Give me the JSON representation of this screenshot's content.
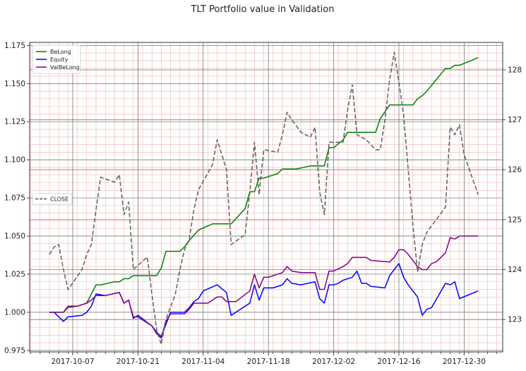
{
  "chart_data": {
    "type": "line",
    "title": "TLT Portfolio value in Validation",
    "xlabel": "",
    "ylabel": "",
    "x_start": "2017-10-02",
    "x_tick_labels": [
      "2017-10-07",
      "2017-10-21",
      "2017-11-04",
      "2017-11-18",
      "2017-12-02",
      "2017-12-16",
      "2017-12-30"
    ],
    "x_range": [
      "2017-09-28",
      "2018-01-05"
    ],
    "y_left_ticks": [
      "0.975",
      "1.000",
      "1.025",
      "1.050",
      "1.075",
      "1.100",
      "1.125",
      "1.150",
      "1.175"
    ],
    "y_right_ticks": [
      "123",
      "124",
      "125",
      "126",
      "127",
      "128"
    ],
    "ylim_left": [
      0.974,
      1.177
    ],
    "ylim_right": [
      122.35,
      128.55
    ],
    "grid": true,
    "legend_left": {
      "placement": "upper-left",
      "entries": [
        "BeLong",
        "Equity",
        "ValBeLong"
      ]
    },
    "legend_right": {
      "placement": "center-left",
      "entries": [
        "CLOSE"
      ]
    },
    "series": [
      {
        "name": "BeLong",
        "axis": "left",
        "color": "#008000",
        "dash": "solid",
        "points": [
          [
            0,
            1.0
          ],
          [
            2,
            1.0
          ],
          [
            3,
            1.0
          ],
          [
            4,
            1.003
          ],
          [
            6,
            1.004
          ],
          [
            8,
            1.006
          ],
          [
            10,
            1.018
          ],
          [
            11,
            1.018
          ],
          [
            14,
            1.02
          ],
          [
            15,
            1.02
          ],
          [
            16,
            1.022
          ],
          [
            17,
            1.022
          ],
          [
            18,
            1.024
          ],
          [
            19,
            1.024
          ],
          [
            22,
            1.024
          ],
          [
            23,
            1.024
          ],
          [
            24,
            1.029
          ],
          [
            25,
            1.04
          ],
          [
            28,
            1.04
          ],
          [
            29,
            1.043
          ],
          [
            30,
            1.047
          ],
          [
            32,
            1.054
          ],
          [
            35,
            1.058
          ],
          [
            39,
            1.058
          ],
          [
            42,
            1.068
          ],
          [
            43,
            1.079
          ],
          [
            44,
            1.079
          ],
          [
            45,
            1.088
          ],
          [
            46,
            1.088
          ],
          [
            49,
            1.091
          ],
          [
            50,
            1.094
          ],
          [
            53,
            1.094
          ],
          [
            56,
            1.096
          ],
          [
            57,
            1.096
          ],
          [
            59,
            1.096
          ],
          [
            60,
            1.108
          ],
          [
            61,
            1.108
          ],
          [
            63,
            1.113
          ],
          [
            64,
            1.118
          ],
          [
            66,
            1.118
          ],
          [
            70,
            1.118
          ],
          [
            71,
            1.127
          ],
          [
            73,
            1.136
          ],
          [
            74,
            1.136
          ],
          [
            77,
            1.136
          ],
          [
            78,
            1.136
          ],
          [
            79,
            1.14
          ],
          [
            80,
            1.142
          ],
          [
            81,
            1.145
          ],
          [
            85,
            1.16
          ],
          [
            86,
            1.16
          ],
          [
            87,
            1.162
          ],
          [
            88,
            1.162
          ],
          [
            92,
            1.167
          ]
        ]
      },
      {
        "name": "Equity",
        "axis": "left",
        "color": "#0000ff",
        "dash": "solid",
        "points": [
          [
            0,
            1.0
          ],
          [
            1,
            1.0
          ],
          [
            2,
            0.997
          ],
          [
            3,
            0.994
          ],
          [
            4,
            0.997
          ],
          [
            7,
            0.998
          ],
          [
            8,
            1.0
          ],
          [
            9,
            1.004
          ],
          [
            10,
            1.012
          ],
          [
            12,
            1.011
          ],
          [
            15,
            1.013
          ],
          [
            16,
            1.006
          ],
          [
            17,
            1.008
          ],
          [
            18,
            0.996
          ],
          [
            19,
            0.998
          ],
          [
            22,
            0.991
          ],
          [
            23,
            0.987
          ],
          [
            24,
            0.984
          ],
          [
            26,
            1.0
          ],
          [
            29,
            1.0
          ],
          [
            30,
            1.003
          ],
          [
            31,
            1.007
          ],
          [
            32,
            1.009
          ],
          [
            33,
            1.014
          ],
          [
            36,
            1.018
          ],
          [
            38,
            1.013
          ],
          [
            39,
            0.998
          ],
          [
            43,
            1.006
          ],
          [
            44,
            1.018
          ],
          [
            45,
            1.008
          ],
          [
            46,
            1.016
          ],
          [
            47,
            1.016
          ],
          [
            48,
            1.016
          ],
          [
            50,
            1.018
          ],
          [
            51,
            1.022
          ],
          [
            52,
            1.019
          ],
          [
            54,
            1.018
          ],
          [
            57,
            1.02
          ],
          [
            58,
            1.009
          ],
          [
            59,
            1.006
          ],
          [
            60,
            1.018
          ],
          [
            61,
            1.018
          ],
          [
            62,
            1.019
          ],
          [
            63,
            1.021
          ],
          [
            65,
            1.023
          ],
          [
            66,
            1.027
          ],
          [
            67,
            1.019
          ],
          [
            68,
            1.019
          ],
          [
            69,
            1.017
          ],
          [
            72,
            1.016
          ],
          [
            73,
            1.024
          ],
          [
            74,
            1.028
          ],
          [
            75,
            1.032
          ],
          [
            76,
            1.023
          ],
          [
            77,
            1.018
          ],
          [
            79,
            1.01
          ],
          [
            80,
            0.998
          ],
          [
            81,
            1.002
          ],
          [
            82,
            1.003
          ],
          [
            85,
            1.019
          ],
          [
            86,
            1.018
          ],
          [
            87,
            1.02
          ],
          [
            88,
            1.009
          ],
          [
            92,
            1.014
          ]
        ]
      },
      {
        "name": "ValBeLong",
        "axis": "left",
        "color": "#800080",
        "dash": "solid",
        "points": [
          [
            0,
            1.0
          ],
          [
            2,
            1.0
          ],
          [
            3,
            1.0
          ],
          [
            4,
            1.004
          ],
          [
            6,
            1.004
          ],
          [
            8,
            1.006
          ],
          [
            9,
            1.008
          ],
          [
            10,
            1.011
          ],
          [
            12,
            1.011
          ],
          [
            15,
            1.013
          ],
          [
            16,
            1.006
          ],
          [
            17,
            1.008
          ],
          [
            18,
            0.997
          ],
          [
            19,
            0.997
          ],
          [
            20,
            0.995
          ],
          [
            22,
            0.991
          ],
          [
            23,
            0.986
          ],
          [
            24,
            0.983
          ],
          [
            25,
            0.994
          ],
          [
            26,
            0.999
          ],
          [
            29,
            0.999
          ],
          [
            30,
            1.002
          ],
          [
            31,
            1.006
          ],
          [
            34,
            1.006
          ],
          [
            36,
            1.01
          ],
          [
            37,
            1.01
          ],
          [
            38,
            1.007
          ],
          [
            40,
            1.007
          ],
          [
            43,
            1.014
          ],
          [
            44,
            1.025
          ],
          [
            45,
            1.016
          ],
          [
            46,
            1.023
          ],
          [
            47,
            1.023
          ],
          [
            50,
            1.026
          ],
          [
            51,
            1.03
          ],
          [
            52,
            1.027
          ],
          [
            54,
            1.026
          ],
          [
            57,
            1.026
          ],
          [
            58,
            1.015
          ],
          [
            59,
            1.015
          ],
          [
            60,
            1.027
          ],
          [
            61,
            1.027
          ],
          [
            63,
            1.03
          ],
          [
            64,
            1.032
          ],
          [
            65,
            1.036
          ],
          [
            68,
            1.036
          ],
          [
            69,
            1.034
          ],
          [
            73,
            1.033
          ],
          [
            74,
            1.036
          ],
          [
            75,
            1.041
          ],
          [
            76,
            1.041
          ],
          [
            77,
            1.038
          ],
          [
            79,
            1.03
          ],
          [
            80,
            1.028
          ],
          [
            81,
            1.028
          ],
          [
            82,
            1.032
          ],
          [
            83,
            1.033
          ],
          [
            85,
            1.039
          ],
          [
            86,
            1.049
          ],
          [
            87,
            1.048
          ],
          [
            88,
            1.05
          ],
          [
            92,
            1.05
          ]
        ]
      },
      {
        "name": "CLOSE",
        "axis": "right",
        "color": "#555555",
        "dash": "dashed",
        "points": [
          [
            0,
            124.3
          ],
          [
            1,
            124.45
          ],
          [
            2,
            124.5
          ],
          [
            3,
            124.0
          ],
          [
            4,
            123.6
          ],
          [
            7,
            124.0
          ],
          [
            8,
            124.3
          ],
          [
            9,
            124.5
          ],
          [
            10,
            125.2
          ],
          [
            11,
            125.85
          ],
          [
            14,
            125.75
          ],
          [
            15,
            125.9
          ],
          [
            16,
            125.1
          ],
          [
            17,
            125.35
          ],
          [
            18,
            124.0
          ],
          [
            21,
            124.25
          ],
          [
            22,
            123.5
          ],
          [
            23,
            122.8
          ],
          [
            24,
            122.5
          ],
          [
            25,
            123.0
          ],
          [
            27,
            123.5
          ],
          [
            28,
            124.0
          ],
          [
            29,
            124.4
          ],
          [
            30,
            124.6
          ],
          [
            31,
            125.2
          ],
          [
            32,
            125.6
          ],
          [
            35,
            126.1
          ],
          [
            36,
            126.6
          ],
          [
            37,
            126.3
          ],
          [
            38,
            126.0
          ],
          [
            39,
            124.5
          ],
          [
            42,
            124.7
          ],
          [
            43,
            125.55
          ],
          [
            44,
            126.55
          ],
          [
            45,
            125.5
          ],
          [
            46,
            126.4
          ],
          [
            49,
            126.35
          ],
          [
            50,
            126.7
          ],
          [
            51,
            127.15
          ],
          [
            52,
            127.0
          ],
          [
            54,
            126.75
          ],
          [
            56,
            126.65
          ],
          [
            57,
            126.85
          ],
          [
            58,
            125.55
          ],
          [
            59,
            125.1
          ],
          [
            60,
            126.55
          ],
          [
            63,
            126.55
          ],
          [
            64,
            127.2
          ],
          [
            65,
            127.7
          ],
          [
            66,
            126.7
          ],
          [
            68,
            126.6
          ],
          [
            70,
            126.4
          ],
          [
            71,
            126.4
          ],
          [
            72,
            127.0
          ],
          [
            73,
            127.8
          ],
          [
            74,
            128.35
          ],
          [
            75,
            127.75
          ],
          [
            76,
            127.1
          ],
          [
            78,
            124.9
          ],
          [
            79,
            123.95
          ],
          [
            80,
            124.5
          ],
          [
            81,
            124.75
          ],
          [
            85,
            125.25
          ],
          [
            86,
            126.85
          ],
          [
            87,
            126.7
          ],
          [
            88,
            126.9
          ],
          [
            89,
            126.3
          ],
          [
            92,
            125.5
          ]
        ]
      }
    ]
  }
}
